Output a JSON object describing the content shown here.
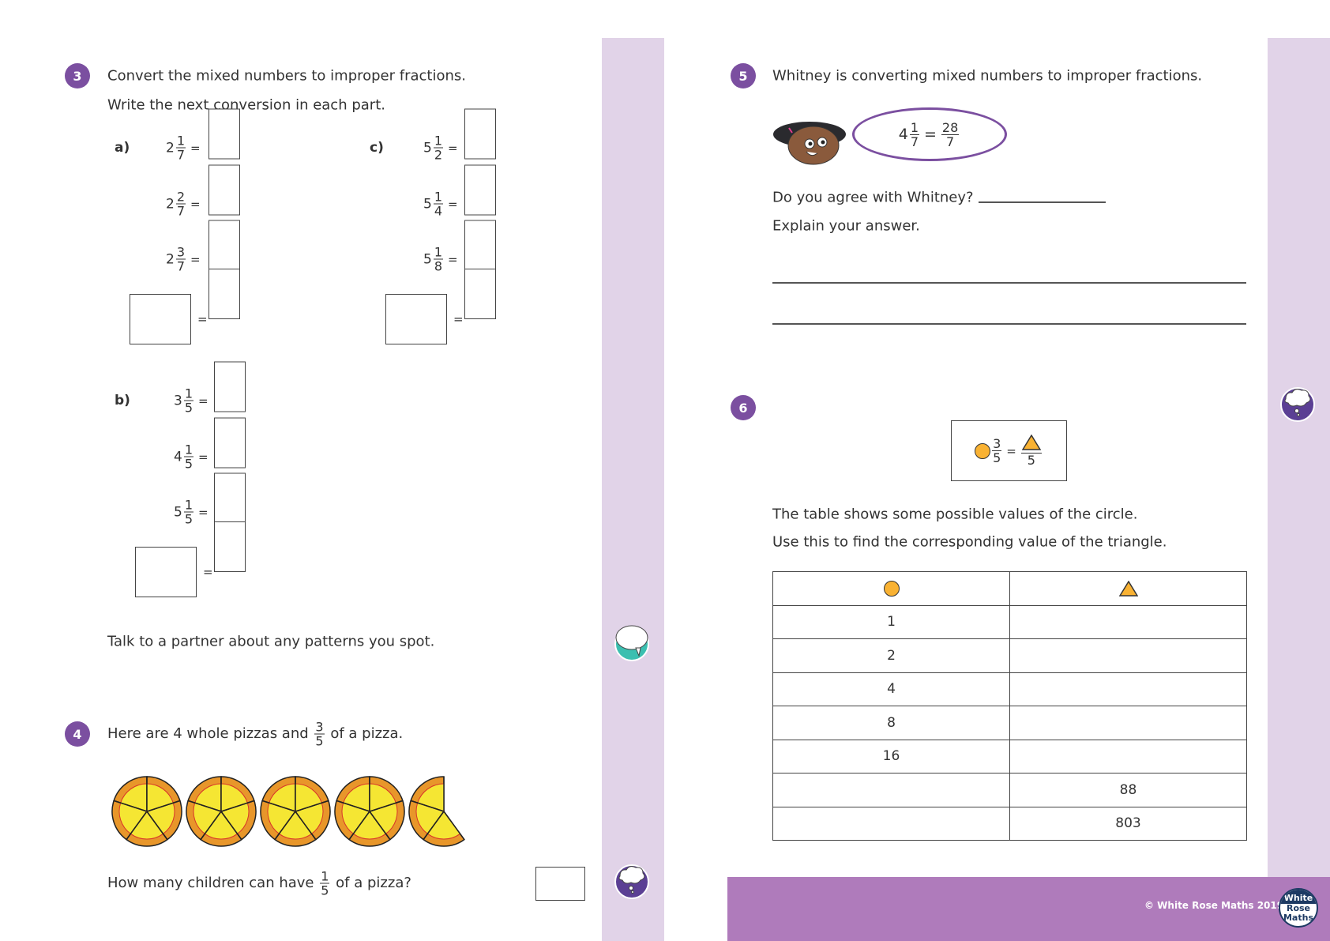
{
  "q3": {
    "number": "3",
    "instruction1": "Convert the mixed numbers to improper fractions.",
    "instruction2": "Write the next conversion in each part.",
    "parts": [
      {
        "label": "a)",
        "rows": [
          {
            "whole": "2",
            "num": "1",
            "den": "7"
          },
          {
            "whole": "2",
            "num": "2",
            "den": "7"
          },
          {
            "whole": "2",
            "num": "3",
            "den": "7"
          }
        ]
      },
      {
        "label": "b)",
        "rows": [
          {
            "whole": "3",
            "num": "1",
            "den": "5"
          },
          {
            "whole": "4",
            "num": "1",
            "den": "5"
          },
          {
            "whole": "5",
            "num": "1",
            "den": "5"
          }
        ]
      },
      {
        "label": "c)",
        "rows": [
          {
            "whole": "5",
            "num": "1",
            "den": "2"
          },
          {
            "whole": "5",
            "num": "1",
            "den": "4"
          },
          {
            "whole": "5",
            "num": "1",
            "den": "8"
          }
        ]
      }
    ],
    "equals": "=",
    "talk": "Talk to a partner about any patterns you spot."
  },
  "q4": {
    "number": "4",
    "text_before": "Here are 4 whole pizzas and",
    "frac": {
      "num": "3",
      "den": "5"
    },
    "text_after": "of a pizza.",
    "pizzas": {
      "whole": 4,
      "partial_slices": 3,
      "slices_per_pizza": 5
    },
    "question_before": "How many children can have",
    "qfrac": {
      "num": "1",
      "den": "5"
    },
    "question_after": "of a pizza?"
  },
  "q5": {
    "number": "5",
    "text": "Whitney is converting mixed numbers to improper fractions.",
    "speech": {
      "whole": "4",
      "num": "1",
      "den": "7",
      "rnum": "28",
      "rden": "7"
    },
    "agree": "Do you agree with Whitney?",
    "explain": "Explain your answer."
  },
  "q6": {
    "number": "6",
    "equation": {
      "num": "3",
      "den": "5",
      "tden": "5"
    },
    "text1": "The table shows some possible values of the circle.",
    "text2": "Use this to find the corresponding value of the triangle.",
    "table": {
      "rows": [
        [
          "1",
          ""
        ],
        [
          "2",
          ""
        ],
        [
          "4",
          ""
        ],
        [
          "8",
          ""
        ],
        [
          "16",
          ""
        ],
        [
          "",
          "88"
        ],
        [
          "",
          "803"
        ]
      ]
    }
  },
  "colors": {
    "accent": "#7b4fa0",
    "strip": "#e1d3e8",
    "footer": "#af7bbb",
    "shape": "#f9b233"
  },
  "footer": {
    "copyright": "© White Rose Maths 2019",
    "logo": "White Rose Maths"
  }
}
